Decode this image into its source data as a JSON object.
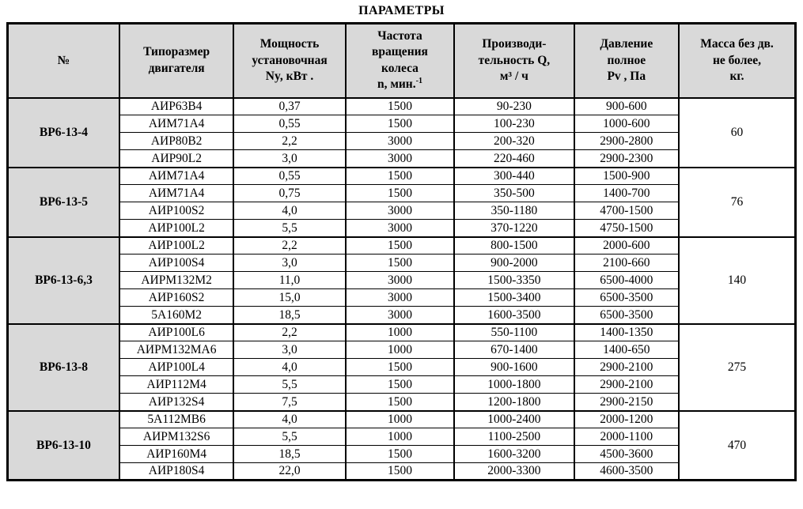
{
  "title": "ПАРАМЕТРЫ",
  "colors": {
    "shaded_bg": "#d9d9d9",
    "border": "#000000",
    "text": "#000000",
    "page_bg": "#ffffff"
  },
  "table": {
    "headers": [
      {
        "key": "num",
        "text": "№"
      },
      {
        "key": "motor",
        "text": "Типоразмер\nдвигателя"
      },
      {
        "key": "power",
        "text": "Мощность\nустановочная\nNy, кВт ."
      },
      {
        "key": "speed",
        "text": "Частота\nвращения\nколеса\nn, мин.",
        "sup": "-1"
      },
      {
        "key": "capacity",
        "text": "Производи-\nтельность Q,\nм³ / ч"
      },
      {
        "key": "pressure",
        "text": "Давление\nполное\nPv , Па"
      },
      {
        "key": "mass",
        "text": "Масса без дв.\nне более,\nкг."
      }
    ],
    "groups": [
      {
        "name": "ВР6-13-4",
        "mass": "60",
        "rows": [
          {
            "motor": "АИР63В4",
            "power": "0,37",
            "speed": "1500",
            "capacity": "90-230",
            "pressure": "900-600"
          },
          {
            "motor": "АИМ71А4",
            "power": "0,55",
            "speed": "1500",
            "capacity": "100-230",
            "pressure": "1000-600"
          },
          {
            "motor": "АИР80В2",
            "power": "2,2",
            "speed": "3000",
            "capacity": "200-320",
            "pressure": "2900-2800"
          },
          {
            "motor": "АИР90L2",
            "power": "3,0",
            "speed": "3000",
            "capacity": "220-460",
            "pressure": "2900-2300"
          }
        ]
      },
      {
        "name": "ВР6-13-5",
        "mass": "76",
        "rows": [
          {
            "motor": "АИМ71А4",
            "power": "0,55",
            "speed": "1500",
            "capacity": "300-440",
            "pressure": "1500-900"
          },
          {
            "motor": "АИМ71А4",
            "power": "0,75",
            "speed": "1500",
            "capacity": "350-500",
            "pressure": "1400-700"
          },
          {
            "motor": "АИР100S2",
            "power": "4,0",
            "speed": "3000",
            "capacity": "350-1180",
            "pressure": "4700-1500"
          },
          {
            "motor": "АИР100L2",
            "power": "5,5",
            "speed": "3000",
            "capacity": "370-1220",
            "pressure": "4750-1500"
          }
        ]
      },
      {
        "name": "ВР6-13-6,3",
        "mass": "140",
        "rows": [
          {
            "motor": "АИР100L2",
            "power": "2,2",
            "speed": "1500",
            "capacity": "800-1500",
            "pressure": "2000-600"
          },
          {
            "motor": "АИР100S4",
            "power": "3,0",
            "speed": "1500",
            "capacity": "900-2000",
            "pressure": "2100-660"
          },
          {
            "motor": "АИРМ132М2",
            "power": "11,0",
            "speed": "3000",
            "capacity": "1500-3350",
            "pressure": "6500-4000"
          },
          {
            "motor": "АИР160S2",
            "power": "15,0",
            "speed": "3000",
            "capacity": "1500-3400",
            "pressure": "6500-3500"
          },
          {
            "motor": "5А160М2",
            "power": "18,5",
            "speed": "3000",
            "capacity": "1600-3500",
            "pressure": "6500-3500"
          }
        ]
      },
      {
        "name": "ВР6-13-8",
        "mass": "275",
        "rows": [
          {
            "motor": "АИР100L6",
            "power": "2,2",
            "speed": "1000",
            "capacity": "550-1100",
            "pressure": "1400-1350"
          },
          {
            "motor": "АИРМ132МА6",
            "power": "3,0",
            "speed": "1000",
            "capacity": "670-1400",
            "pressure": "1400-650"
          },
          {
            "motor": "АИР100L4",
            "power": "4,0",
            "speed": "1500",
            "capacity": "900-1600",
            "pressure": "2900-2100"
          },
          {
            "motor": "АИР112М4",
            "power": "5,5",
            "speed": "1500",
            "capacity": "1000-1800",
            "pressure": "2900-2100"
          },
          {
            "motor": "АИР132S4",
            "power": "7,5",
            "speed": "1500",
            "capacity": "1200-1800",
            "pressure": "2900-2150"
          }
        ]
      },
      {
        "name": "ВР6-13-10",
        "mass": "470",
        "rows": [
          {
            "motor": "5А112МВ6",
            "power": "4,0",
            "speed": "1000",
            "capacity": "1000-2400",
            "pressure": "2000-1200"
          },
          {
            "motor": "АИРМ132S6",
            "power": "5,5",
            "speed": "1000",
            "capacity": "1100-2500",
            "pressure": "2000-1100"
          },
          {
            "motor": "АИР160М4",
            "power": "18,5",
            "speed": "1500",
            "capacity": "1600-3200",
            "pressure": "4500-3600"
          },
          {
            "motor": "АИР180S4",
            "power": "22,0",
            "speed": "1500",
            "capacity": "2000-3300",
            "pressure": "4600-3500"
          }
        ]
      }
    ]
  }
}
